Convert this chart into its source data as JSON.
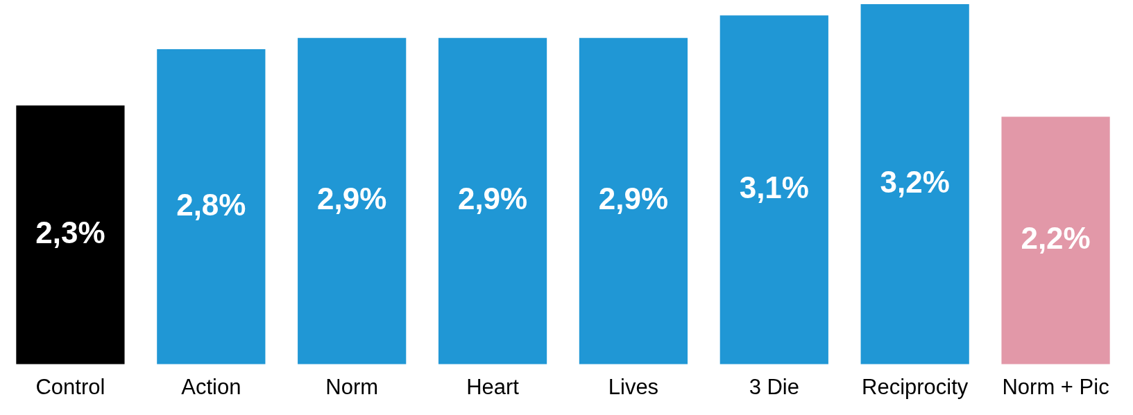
{
  "chart_data": {
    "type": "bar",
    "categories": [
      "Control",
      "Action",
      "Norm",
      "Heart",
      "Lives",
      "3 Die",
      "Reciprocity",
      "Norm + Pic"
    ],
    "values": [
      2.3,
      2.8,
      2.9,
      2.9,
      2.9,
      3.1,
      3.2,
      2.2
    ],
    "colors": [
      "#000000",
      "#2097d5",
      "#2097d5",
      "#2097d5",
      "#2097d5",
      "#2097d5",
      "#2097d5",
      "#e298a8"
    ],
    "value_labels": [
      "2,3%",
      "2,8%",
      "2,9%",
      "2,9%",
      "2,9%",
      "3,1%",
      "3,2%",
      "2,2%"
    ],
    "tick_labels": "x",
    "grid": false,
    "legend": false
  }
}
